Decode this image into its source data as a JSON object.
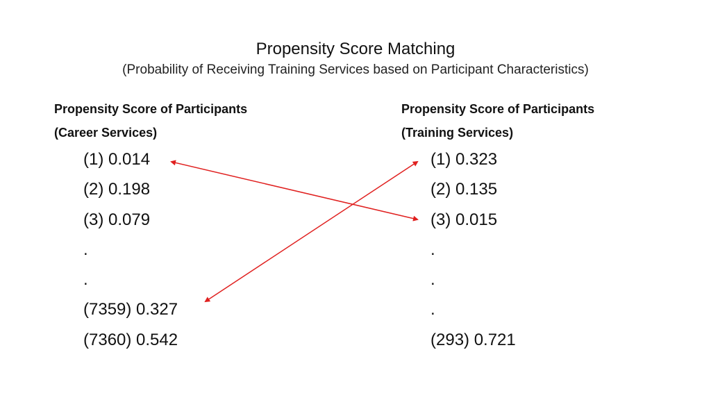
{
  "title": "Propensity Score Matching",
  "subtitle": "(Probability of Receiving Training Services based on Participant Characteristics)",
  "left_column": {
    "heading_line1": "Propensity Score of Participants",
    "heading_line2": "(Career Services)",
    "items": [
      "(1) 0.014",
      "(2) 0.198",
      "(3) 0.079",
      ".",
      ".",
      "(7359) 0.327",
      "(7360) 0.542"
    ]
  },
  "right_column": {
    "heading_line1": "Propensity Score of Participants",
    "heading_line2": "(Training Services)",
    "items": [
      "(1) 0.323",
      "(2) 0.135",
      "(3) 0.015",
      ".",
      ".",
      ".",
      "(293) 0.721"
    ]
  },
  "connections": [
    {
      "from": "left (1) 0.014",
      "to": "right (3) 0.015"
    },
    {
      "from": "left (7359) 0.327",
      "to": "right (1) 0.323"
    }
  ],
  "colors": {
    "arrow": "#e0201f",
    "text": "#111111"
  }
}
